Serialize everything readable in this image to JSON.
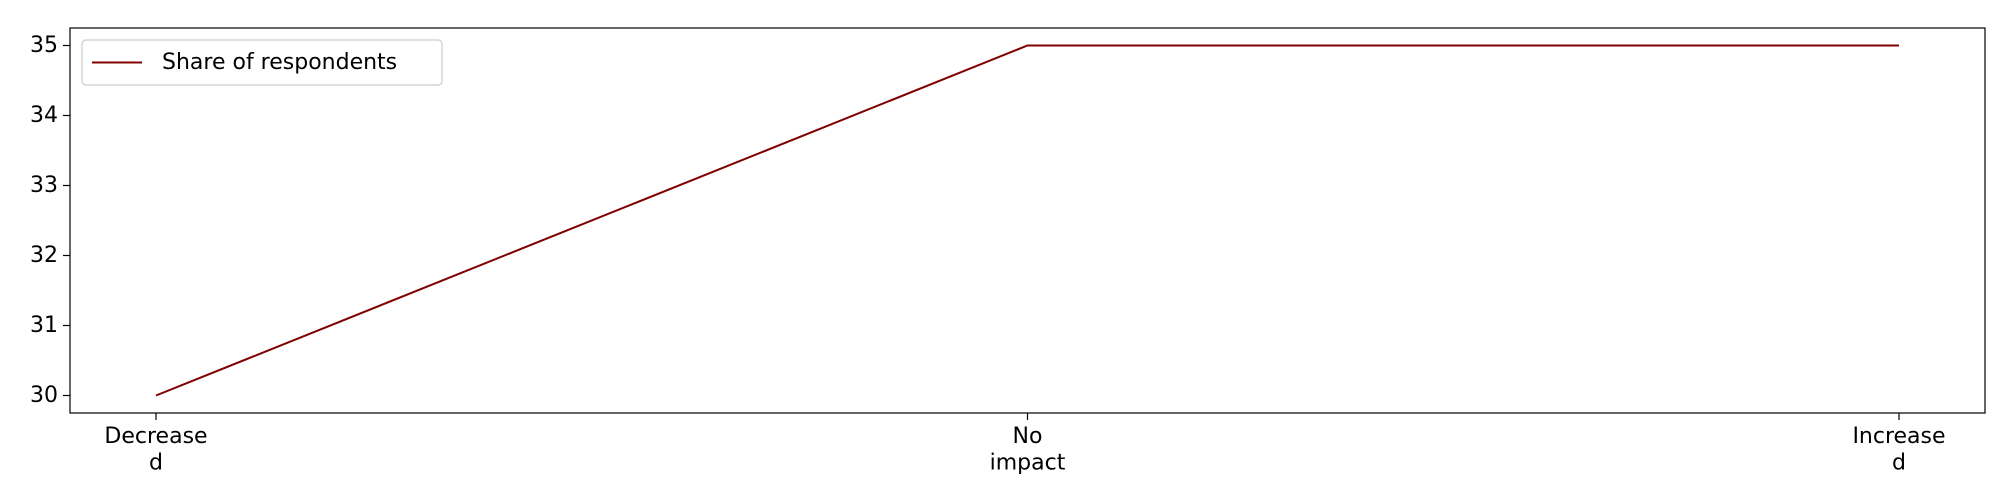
{
  "chart_data": {
    "type": "line",
    "categories": [
      "Decrease\nd",
      "No\nimpact",
      "Increase\nd"
    ],
    "series": [
      {
        "name": "Share of respondents",
        "values": [
          30,
          35,
          35
        ],
        "color": "#800000"
      }
    ],
    "title": "",
    "xlabel": "",
    "ylabel": "",
    "ylim": [
      29.75,
      35.25
    ],
    "yticks": [
      30,
      31,
      32,
      33,
      34,
      35
    ],
    "grid": false,
    "legend_position": "top-left"
  }
}
